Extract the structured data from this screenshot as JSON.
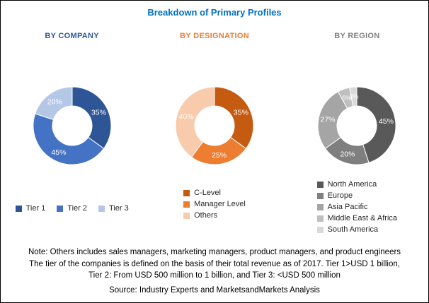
{
  "title": "Breakdown of Primary Profiles",
  "title_color": "#0070c0",
  "chart_data": [
    {
      "type": "pie",
      "subtype": "donut",
      "title": "BY COMPANY",
      "heading_color": "#2e5697",
      "labels": [
        "Tier 1",
        "Tier 2",
        "Tier 3"
      ],
      "values": [
        35,
        45,
        20
      ],
      "value_suffix": "%",
      "colors": [
        "#2e5697",
        "#4472c4",
        "#b4c7e7"
      ],
      "legend_layout": "horizontal",
      "legend_position": "bottom"
    },
    {
      "type": "pie",
      "subtype": "donut",
      "title": "BY DESIGNATION",
      "heading_color": "#ed7d31",
      "labels": [
        "C-Level",
        "Manager Level",
        "Others"
      ],
      "values": [
        35,
        25,
        40
      ],
      "value_suffix": "%",
      "colors": [
        "#c55a11",
        "#ed7d31",
        "#f8cbad"
      ],
      "legend_layout": "vertical",
      "legend_position": "bottom"
    },
    {
      "type": "pie",
      "subtype": "donut",
      "title": "BY REGION",
      "heading_color": "#808080",
      "labels": [
        "North America",
        "Europe",
        "Asia Pacific",
        "Middle East & Africa",
        "South America"
      ],
      "values": [
        45,
        20,
        27,
        5,
        3
      ],
      "value_suffix": "%",
      "colors": [
        "#595959",
        "#7f7f7f",
        "#a5a5a5",
        "#bfbfbf",
        "#d9d9d9"
      ],
      "legend_layout": "vertical",
      "legend_position": "bottom"
    }
  ],
  "notes": [
    "Note: Others includes sales managers, marketing managers, product managers, and product engineers",
    "The tier of the companies is defined on the basis of their total revenue as of 2017. Tier 1>USD 1 billion,",
    "Tier 2: From USD 500 million to 1 billion, and Tier 3: <USD 500 million"
  ],
  "source": "Source: Industry Experts and MarketsandMarkets Analysis"
}
